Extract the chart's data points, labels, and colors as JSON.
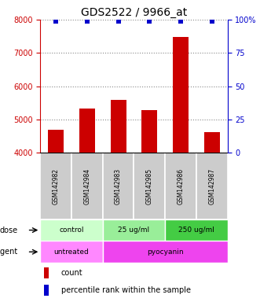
{
  "title": "GDS2522 / 9966_at",
  "samples": [
    "GSM142982",
    "GSM142984",
    "GSM142983",
    "GSM142985",
    "GSM142986",
    "GSM142987"
  ],
  "counts": [
    4700,
    5320,
    5600,
    5290,
    7480,
    4620
  ],
  "percentile_ranks": [
    99,
    99,
    99,
    99,
    99,
    99
  ],
  "bar_color": "#cc0000",
  "dot_color": "#0000cc",
  "ylim_left": [
    4000,
    8000
  ],
  "ylim_right": [
    0,
    100
  ],
  "yticks_left": [
    4000,
    5000,
    6000,
    7000,
    8000
  ],
  "yticks_right": [
    0,
    25,
    50,
    75,
    100
  ],
  "ytick_labels_right": [
    "0",
    "25",
    "50",
    "75",
    "100%"
  ],
  "dose_groups": [
    {
      "label": "control",
      "cols": [
        0,
        1
      ],
      "color": "#ccffcc"
    },
    {
      "label": "25 ug/ml",
      "cols": [
        2,
        3
      ],
      "color": "#99ee99"
    },
    {
      "label": "250 ug/ml",
      "cols": [
        4,
        5
      ],
      "color": "#44cc44"
    }
  ],
  "agent_groups": [
    {
      "label": "untreated",
      "cols": [
        0,
        1
      ],
      "color": "#ff88ff"
    },
    {
      "label": "pyocyanin",
      "cols": [
        2,
        3,
        4,
        5
      ],
      "color": "#ee44ee"
    }
  ],
  "dose_label": "dose",
  "agent_label": "agent",
  "legend_count_label": "count",
  "legend_pct_label": "percentile rank within the sample",
  "title_fontsize": 10,
  "axis_label_color_left": "#cc0000",
  "axis_label_color_right": "#0000cc",
  "grid_color": "#888888",
  "sample_box_color": "#cccccc",
  "background_color": "#ffffff"
}
